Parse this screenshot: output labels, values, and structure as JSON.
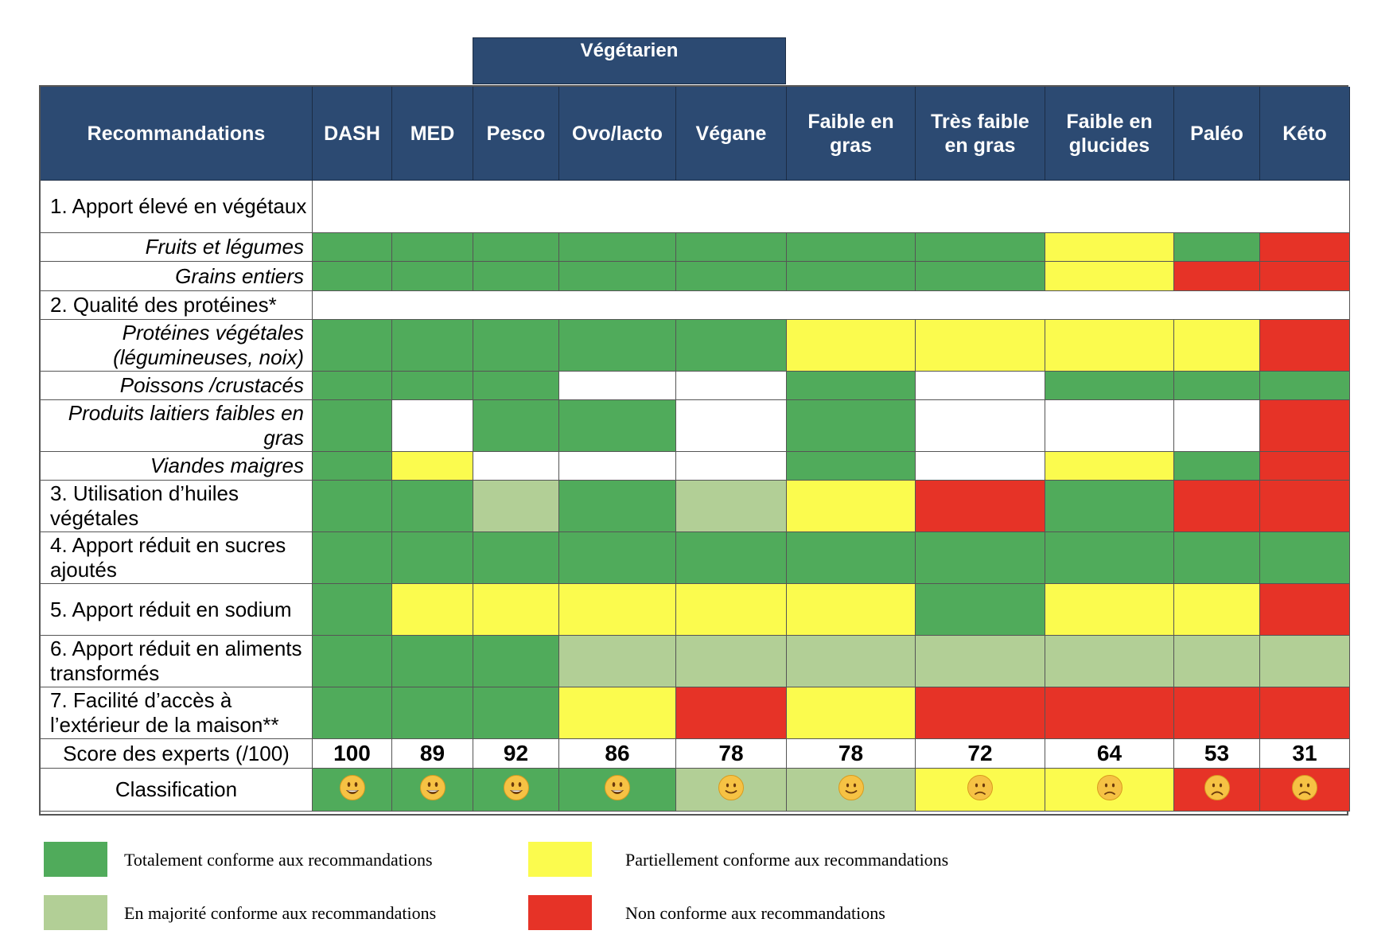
{
  "group_header": "Végétarien",
  "columns": [
    "Recommandations",
    "DASH",
    "MED",
    "Pesco",
    "Ovo/lacto",
    "Végane",
    "Faible en gras",
    "Très faible en gras",
    "Faible en glucides",
    "Paléo",
    "Kéto"
  ],
  "rows": [
    {
      "label": "1. Apport élevé en végétaux",
      "type": "main",
      "cells": null
    },
    {
      "label": "Fruits et légumes",
      "type": "sub",
      "cells": [
        "G",
        "G",
        "G",
        "G",
        "G",
        "G",
        "G",
        "Y",
        "G",
        "R"
      ]
    },
    {
      "label": "Grains entiers",
      "type": "sub",
      "cells": [
        "G",
        "G",
        "G",
        "G",
        "G",
        "G",
        "G",
        "Y",
        "R",
        "R"
      ]
    },
    {
      "label": "2. Qualité des protéines*",
      "type": "main",
      "cells": null
    },
    {
      "label": "Protéines végétales (légumineuses, noix)",
      "type": "sub",
      "cells": [
        "G",
        "G",
        "G",
        "G",
        "G",
        "Y",
        "Y",
        "Y",
        "Y",
        "R"
      ]
    },
    {
      "label": "Poissons /crustacés",
      "type": "sub",
      "cells": [
        "G",
        "G",
        "G",
        "W",
        "W",
        "G",
        "W",
        "G",
        "G",
        "G"
      ]
    },
    {
      "label": "Produits laitiers faibles en gras",
      "type": "sub",
      "cells": [
        "G",
        "W",
        "G",
        "G",
        "W",
        "G",
        "W",
        "W",
        "W",
        "R"
      ]
    },
    {
      "label": "Viandes maigres",
      "type": "sub",
      "cells": [
        "G",
        "Y",
        "W",
        "W",
        "W",
        "G",
        "W",
        "Y",
        "G",
        "R"
      ]
    },
    {
      "label": "3. Utilisation d’huiles végétales",
      "type": "main",
      "cells": [
        "G",
        "G",
        "L",
        "G",
        "L",
        "Y",
        "R",
        "G",
        "R",
        "R"
      ]
    },
    {
      "label": "4. Apport réduit en sucres ajoutés",
      "type": "main",
      "cells": [
        "G",
        "G",
        "G",
        "G",
        "G",
        "G",
        "G",
        "G",
        "G",
        "G"
      ]
    },
    {
      "label": "5. Apport réduit en sodium",
      "type": "main",
      "cells": [
        "G",
        "Y",
        "Y",
        "Y",
        "Y",
        "Y",
        "G",
        "Y",
        "Y",
        "R"
      ]
    },
    {
      "label": "6. Apport réduit en aliments transformés",
      "type": "main",
      "cells": [
        "G",
        "G",
        "G",
        "L",
        "L",
        "L",
        "L",
        "L",
        "L",
        "L"
      ]
    },
    {
      "label": "7. Facilité d’accès à l’extérieur de la maison**",
      "type": "main",
      "cells": [
        "G",
        "G",
        "G",
        "Y",
        "R",
        "Y",
        "R",
        "R",
        "R",
        "R"
      ]
    }
  ],
  "score_label": "Score des experts (/100)",
  "scores": [
    100,
    89,
    92,
    86,
    78,
    78,
    72,
    64,
    53,
    31
  ],
  "classification_label": "Classification",
  "classification": [
    {
      "color": "G",
      "face": "grinning-face"
    },
    {
      "color": "G",
      "face": "grinning-face"
    },
    {
      "color": "G",
      "face": "grinning-face"
    },
    {
      "color": "G",
      "face": "grinning-face"
    },
    {
      "color": "L",
      "face": "slightly-smiling-face"
    },
    {
      "color": "L",
      "face": "slightly-smiling-face"
    },
    {
      "color": "Y",
      "face": "slightly-frowning-face"
    },
    {
      "color": "Y",
      "face": "slightly-frowning-face"
    },
    {
      "color": "R",
      "face": "frowning-face"
    },
    {
      "color": "R",
      "face": "frowning-face"
    }
  ],
  "colors": {
    "G": "#50ab5b",
    "L": "#b2cf96",
    "Y": "#fbfb4e",
    "R": "#e63327",
    "W": "#ffffff",
    "header": "#2c4a72"
  },
  "legend": [
    {
      "color": "G",
      "text": "Totalement conforme aux recommandations"
    },
    {
      "color": "L",
      "text": "En majorité conforme aux recommandations"
    },
    {
      "color": "Y",
      "text": "Partiellement conforme aux recommandations"
    },
    {
      "color": "R",
      "text": "Non conforme aux recommandations"
    }
  ],
  "chart_data": {
    "type": "table",
    "categories": [
      "DASH",
      "MED",
      "Pesco",
      "Ovo/lacto",
      "Végane",
      "Faible en gras",
      "Très faible en gras",
      "Faible en glucides",
      "Paléo",
      "Kéto"
    ],
    "series": [
      {
        "name": "Score des experts (/100)",
        "values": [
          100,
          89,
          92,
          86,
          78,
          78,
          72,
          64,
          53,
          31
        ]
      }
    ]
  }
}
